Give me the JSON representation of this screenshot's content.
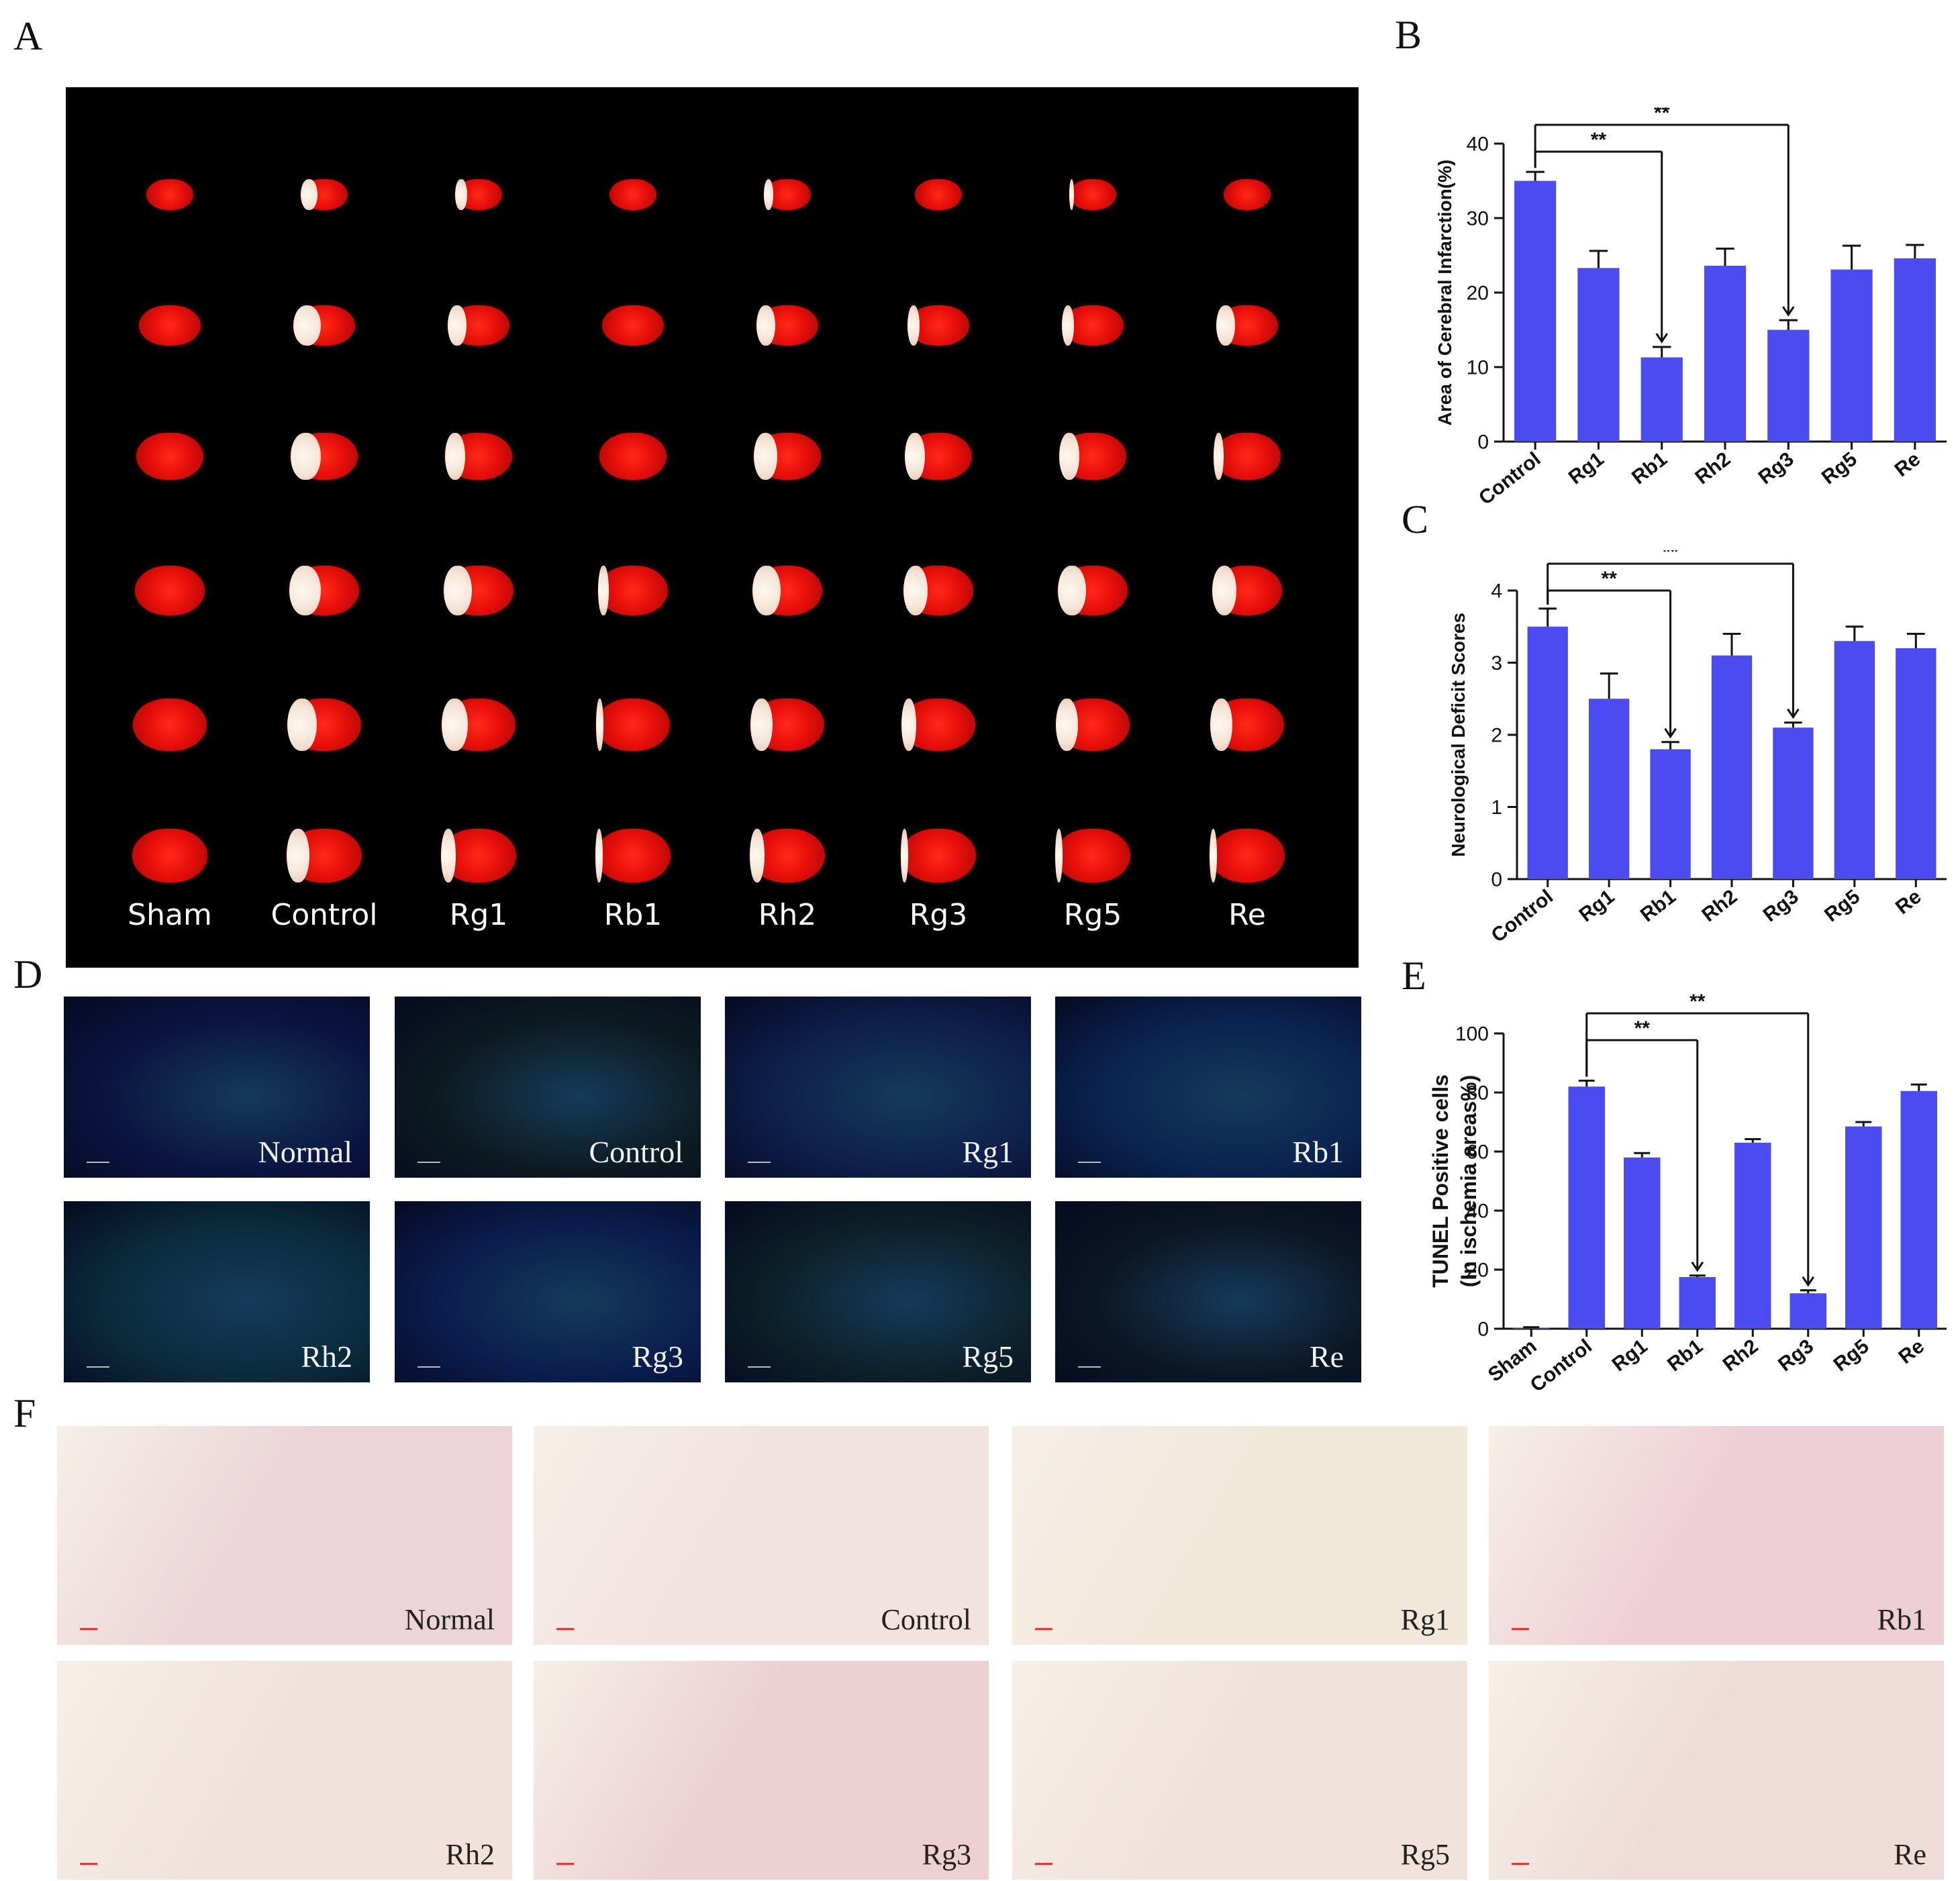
{
  "panels": {
    "a": "A",
    "b": "B",
    "c": "C",
    "d": "D",
    "e": "E",
    "f": "F"
  },
  "ttc": {
    "groups": [
      "Sham",
      "Control",
      "Rg1",
      "Rb1",
      "Rh2",
      "Rg3",
      "Rg5",
      "Re"
    ]
  },
  "fluorescence": {
    "tiles": [
      "Normal",
      "Control",
      "Rg1",
      "Rb1",
      "Rh2",
      "Rg3",
      "Rg5",
      "Re"
    ],
    "colors": [
      "#0a1440",
      "#0c1a20",
      "#0d1e4a",
      "#0a2250",
      "#0b2a3c",
      "#0a1c4e",
      "#0c1f28",
      "#0b1624"
    ]
  },
  "he_stain": {
    "tiles": [
      "Normal",
      "Control",
      "Rg1",
      "Rb1",
      "Rh2",
      "Rg3",
      "Rg5",
      "Re"
    ],
    "colors": [
      "#ecd4d8",
      "#f2e2e0",
      "#f2e8da",
      "#efcfd6",
      "#f1e2dc",
      "#ecd0d2",
      "#f1e2dc",
      "#efdcd8"
    ]
  },
  "chart_data": [
    {
      "panel": "B",
      "type": "bar",
      "categories": [
        "Control",
        "Rg1",
        "Rb1",
        "Rh2",
        "Rg3",
        "Rg5",
        "Re"
      ],
      "values": [
        35,
        23.3,
        11.3,
        23.6,
        15,
        23.1,
        24.6
      ],
      "errors": [
        1.2,
        2.3,
        1.4,
        2.3,
        1.3,
        3.2,
        1.8
      ],
      "ylabel": "Area of Cerebral Infarction(%)",
      "xlabel": "",
      "ylim": [
        0,
        40
      ],
      "yticks": [
        0,
        10,
        20,
        30,
        40
      ],
      "color": "#4b4bf0",
      "significance": [
        {
          "from": "Control",
          "to": "Rb1",
          "label": "**"
        },
        {
          "from": "Control",
          "to": "Rg3",
          "label": "**"
        }
      ]
    },
    {
      "panel": "C",
      "type": "bar",
      "categories": [
        "Control",
        "Rg1",
        "Rb1",
        "Rh2",
        "Rg3",
        "Rg5",
        "Re"
      ],
      "values": [
        3.5,
        2.5,
        1.8,
        3.1,
        2.1,
        3.3,
        3.2
      ],
      "errors": [
        0.25,
        0.35,
        0.1,
        0.3,
        0.07,
        0.2,
        0.2
      ],
      "ylabel": "Neurological Deficit Scores",
      "xlabel": "",
      "ylim": [
        0,
        4
      ],
      "yticks": [
        0,
        1,
        2,
        3,
        4
      ],
      "color": "#4b4bf0",
      "significance": [
        {
          "from": "Control",
          "to": "Rb1",
          "label": "**"
        },
        {
          "from": "Control",
          "to": "Rg3",
          "label": "**"
        }
      ]
    },
    {
      "panel": "E",
      "type": "bar",
      "categories": [
        "Sham",
        "Control",
        "Rg1",
        "Rb1",
        "Rh2",
        "Rg3",
        "Rg5",
        "Re"
      ],
      "values": [
        0.3,
        82,
        58,
        17.5,
        63,
        12,
        68.5,
        80.5
      ],
      "errors": [
        0.2,
        2,
        1.5,
        0.5,
        1.2,
        1,
        1.5,
        2.2
      ],
      "ylabel": "TUNEL Positive cells",
      "ylabel2": "(In ischemia areas%)",
      "xlabel": "",
      "ylim": [
        0,
        100
      ],
      "yticks": [
        0,
        20,
        40,
        60,
        80,
        100
      ],
      "color": "#4b4bf0",
      "significance": [
        {
          "from": "Control",
          "to": "Rb1",
          "label": "**"
        },
        {
          "from": "Control",
          "to": "Rg3",
          "label": "**"
        }
      ]
    }
  ]
}
